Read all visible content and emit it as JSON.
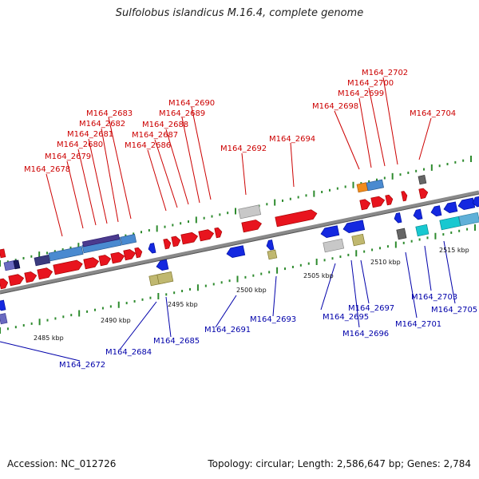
{
  "title": "Sulfolobus islandicus M.16.4, complete genome",
  "accession": "Accession: NC_012726",
  "summary": "Topology: circular; Length: 2,586,647 bp; Genes: 2,784",
  "colors": {
    "forward_label": "#cc0000",
    "reverse_label": "#0000aa",
    "backbone": "#8a8a8a",
    "tick": "#2e8b2e"
  },
  "kbp_labels": [
    "2485 kbp",
    "2490 kbp",
    "2495 kbp",
    "2500 kbp",
    "2505 kbp",
    "2510 kbp",
    "2515 kbp"
  ],
  "forward_labels": [
    "M164_2678",
    "M164_2679",
    "M164_2680",
    "M164_2681",
    "M164_2682",
    "M164_2683",
    "M164_2686",
    "M164_2687",
    "M164_2688",
    "M164_2689",
    "M164_2690",
    "M164_2692",
    "M164_2694",
    "M164_2698",
    "M164_2699",
    "M164_2700",
    "M164_2702",
    "M164_2704"
  ],
  "reverse_labels": [
    "M164_2672",
    "M164_2684",
    "M164_2685",
    "M164_2691",
    "M164_2693",
    "M164_2695",
    "M164_2696",
    "M164_2697",
    "M164_2701",
    "M164_2703",
    "M164_2705"
  ]
}
